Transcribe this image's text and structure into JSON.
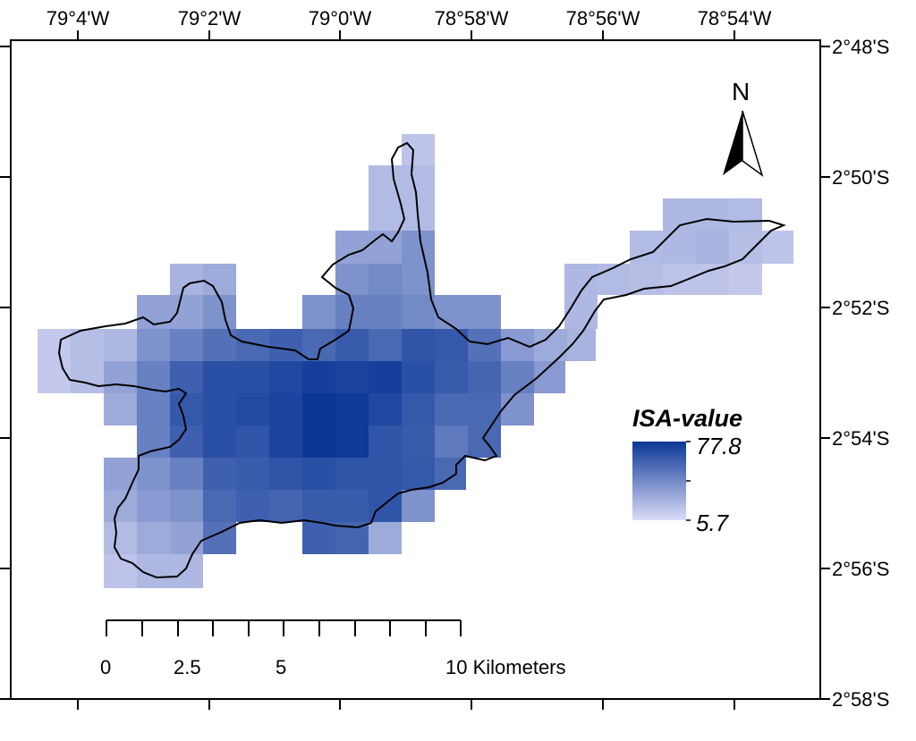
{
  "map": {
    "top_axis_labels": [
      "79°4'W",
      "79°2'W",
      "79°0'W",
      "78°58'W",
      "78°56'W",
      "78°54'W"
    ],
    "right_axis_labels": [
      "2°48'S",
      "2°50'S",
      "2°52'S",
      "2°54'S",
      "2°56'S",
      "2°58'S"
    ],
    "north_arrow": {
      "label": "N",
      "icon": "north-arrow-icon"
    },
    "legend": {
      "title": "ISA-value",
      "max_value": "77.8",
      "min_value": "5.7",
      "color_high": "#0a3796",
      "color_low": "#dcdcf8"
    },
    "scale_bar": {
      "labels": [
        "0",
        "2.5",
        "5",
        "10 Kilometers"
      ]
    },
    "colors": {
      "boundary": "#000000",
      "frame": "#000000"
    }
  }
}
